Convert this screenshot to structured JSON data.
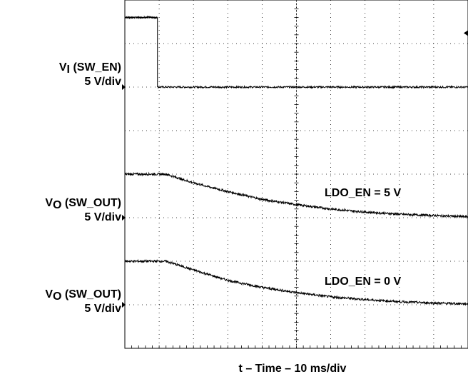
{
  "chart_data": {
    "type": "line",
    "title": "",
    "xlabel": "t – Time – 10 ms/div",
    "ylabel": "",
    "grid": true,
    "xdivs": 10,
    "ydivs": 8,
    "xlim_div": [
      0,
      10
    ],
    "channels": [
      {
        "name_main": "V",
        "name_sub": "I",
        "name_rest": " (SW_EN)",
        "scale": "5 V/div",
        "baseline_div": 6.0
      },
      {
        "name_main": "V",
        "name_sub": "O",
        "name_rest": " (SW_OUT)",
        "scale": "5 V/div",
        "baseline_div": 3.0
      },
      {
        "name_main": "V",
        "name_sub": "O",
        "name_rest": " (SW_OUT)",
        "scale": "5 V/div",
        "baseline_div": 1.0
      }
    ],
    "series": [
      {
        "name": "",
        "channel": 0,
        "x_div": [
          0,
          0.95,
          0.95,
          10
        ],
        "y_div": [
          7.6,
          7.6,
          6.0,
          6.0
        ]
      },
      {
        "name": "LDO_EN = 5 V",
        "channel": 1,
        "x_div": [
          0,
          1.2,
          2.0,
          3.0,
          4.0,
          5.0,
          6.0,
          7.0,
          8.0,
          9.0,
          10.0
        ],
        "y_div": [
          4.0,
          4.0,
          3.8,
          3.6,
          3.42,
          3.3,
          3.2,
          3.13,
          3.08,
          3.05,
          3.02
        ]
      },
      {
        "name": "LDO_EN = 0 V",
        "channel": 2,
        "x_div": [
          0,
          1.2,
          2.0,
          3.0,
          4.0,
          5.0,
          6.0,
          7.0,
          8.0,
          9.0,
          10.0
        ],
        "y_div": [
          2.0,
          2.0,
          1.8,
          1.56,
          1.4,
          1.28,
          1.18,
          1.12,
          1.07,
          1.04,
          1.02
        ]
      }
    ],
    "annotations": [
      "LDO_EN = 5 V",
      "LDO_EN = 0 V"
    ]
  }
}
